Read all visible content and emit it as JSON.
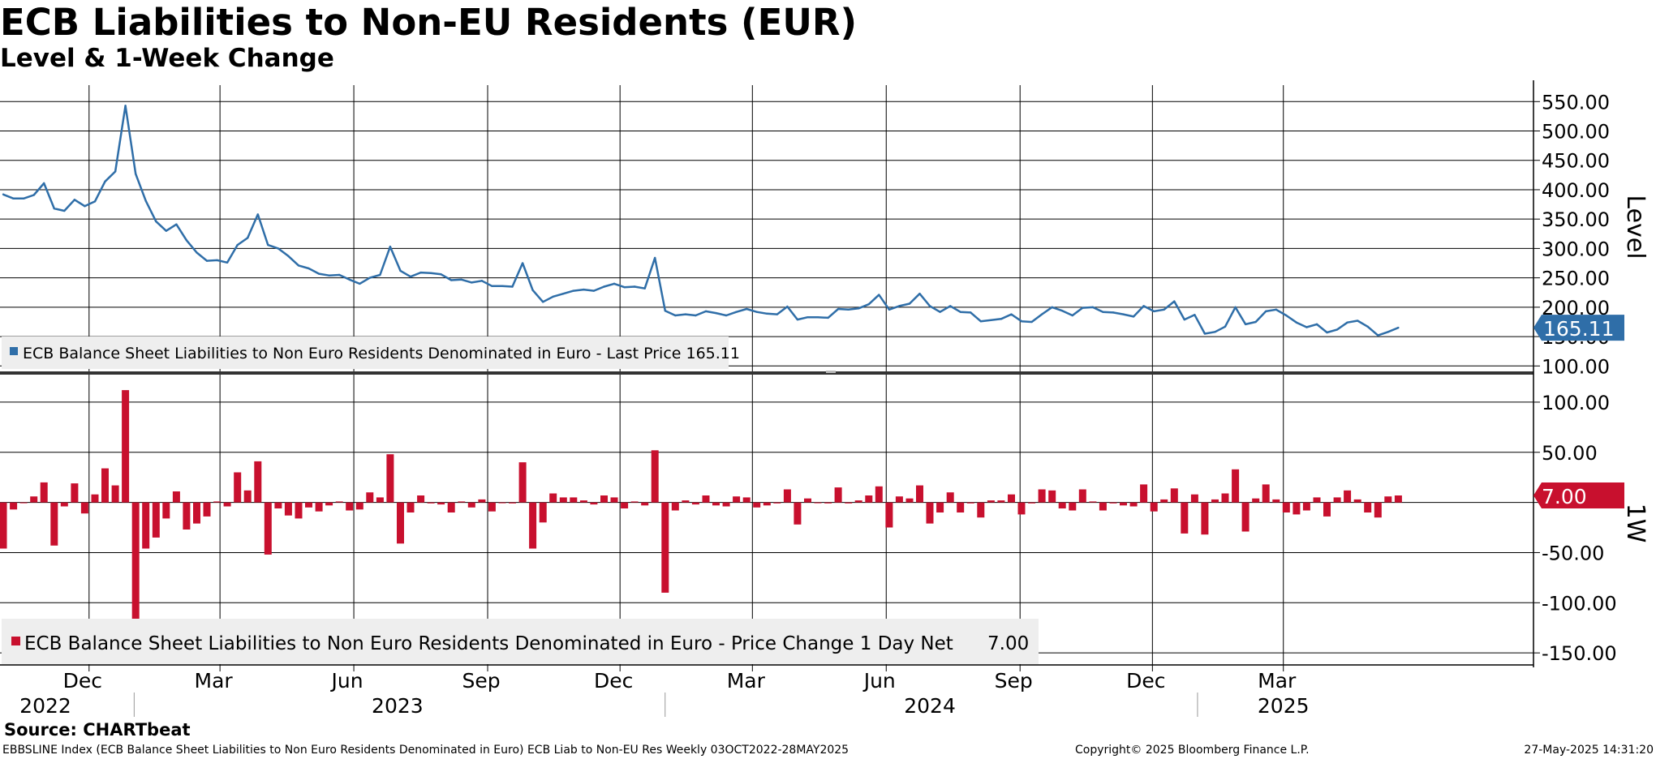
{
  "header": {
    "title": "ECB Liabilities to Non-EU Residents (EUR)",
    "subtitle": "Level & 1-Week Change"
  },
  "footer": {
    "source": "Source: CHARTbeat",
    "ticker_info": "EBBSLINE Index (ECB Balance Sheet Liabilities to Non Euro Residents Denominated in Euro) ECB Liab to Non-EU Res  Weekly 03OCT2022-28MAY2025",
    "copyright": "Copyright© 2025 Bloomberg Finance L.P.",
    "timestamp": "27-May-2025 14:31:20"
  },
  "colors": {
    "level_line": "#2f6ea8",
    "change_bar": "#c8102e",
    "grid": "#000000",
    "legend_bg": "#eeeeee"
  },
  "chart_data": [
    {
      "type": "line",
      "panel": "top",
      "ylabel": "Level",
      "ylim": [
        88,
        578
      ],
      "yticks": [
        100,
        150,
        200,
        250,
        300,
        350,
        400,
        450,
        500,
        550
      ],
      "ytick_labels": [
        "100.00",
        "150.00",
        "200.00",
        "250.00",
        "300.00",
        "350.00",
        "400.00",
        "450.00",
        "500.00",
        "550.00"
      ],
      "legend": "ECB Balance Sheet Liabilities to Non Euro Residents Denominated in Euro - Last Price 165.11",
      "last_value_label": "165.11",
      "series": [
        {
          "name": "ECB Balance Sheet Liabilities to Non Euro Residents Denominated in Euro",
          "x_start": "2022-10-03",
          "frequency": "weekly",
          "values": [
            392,
            385,
            385,
            391,
            411,
            368,
            364,
            383,
            372,
            380,
            414,
            431,
            543,
            427,
            381,
            346,
            330,
            341,
            314,
            293,
            279,
            280,
            276,
            306,
            318,
            358,
            306,
            300,
            287,
            271,
            266,
            257,
            254,
            255,
            247,
            240,
            250,
            255,
            303,
            262,
            252,
            259,
            258,
            256,
            246,
            247,
            242,
            245,
            236,
            236,
            235,
            275,
            229,
            209,
            218,
            223,
            228,
            230,
            228,
            235,
            240,
            234,
            235,
            232,
            284,
            194,
            186,
            188,
            186,
            193,
            190,
            186,
            192,
            197,
            192,
            189,
            188,
            201,
            179,
            183,
            183,
            182,
            197,
            196,
            198,
            205,
            221,
            196,
            202,
            206,
            223,
            202,
            192,
            202,
            192,
            191,
            176,
            178,
            180,
            188,
            176,
            175,
            188,
            200,
            194,
            186,
            199,
            200,
            192,
            191,
            188,
            184,
            202,
            193,
            196,
            210,
            179,
            187,
            155,
            158,
            167,
            200,
            171,
            175,
            193,
            196,
            186,
            174,
            166,
            171,
            157,
            162,
            174,
            177,
            167,
            152,
            158,
            165.11
          ]
        }
      ]
    },
    {
      "type": "bar",
      "panel": "bottom",
      "ylabel": "1W",
      "ylim": [
        -162,
        125
      ],
      "yticks": [
        -150,
        -100,
        -50,
        0,
        50,
        100
      ],
      "ytick_labels": [
        "-150.00",
        "-100.00",
        "-50.00",
        "",
        "50.00",
        "100.00"
      ],
      "legend_prefix": "ECB Balance Sheet Liabilities to Non Euro Residents Denominated in Euro - Price Change 1 Day Net",
      "legend_value": "7.00",
      "last_value_label": "7.00",
      "series": [
        {
          "name": "1-Week Change",
          "x_start": "2022-10-03",
          "frequency": "weekly",
          "values": [
            -46,
            -7,
            0,
            6,
            20,
            -43,
            -4,
            19,
            -11,
            8,
            34,
            17,
            112,
            -116,
            -46,
            -35,
            -16,
            11,
            -27,
            -21,
            -14,
            1,
            -4,
            30,
            12,
            41,
            -52,
            -6,
            -13,
            -16,
            -5,
            -9,
            -3,
            1,
            -8,
            -7,
            10,
            5,
            48,
            -41,
            -10,
            7,
            -1,
            -2,
            -10,
            1,
            -5,
            3,
            -9,
            0,
            -1,
            40,
            -46,
            -20,
            9,
            5,
            5,
            2,
            -2,
            7,
            5,
            -6,
            1,
            -3,
            52,
            -90,
            -8,
            2,
            -2,
            7,
            -3,
            -4,
            6,
            5,
            -5,
            -3,
            -1,
            13,
            -22,
            4,
            0,
            -1,
            15,
            -1,
            2,
            7,
            16,
            -25,
            6,
            4,
            17,
            -21,
            -10,
            10,
            -10,
            -1,
            -15,
            2,
            2,
            8,
            -12,
            -1,
            13,
            12,
            -6,
            -8,
            13,
            1,
            -8,
            -1,
            -3,
            -4,
            18,
            -9,
            3,
            14,
            -31,
            8,
            -32,
            3,
            9,
            33,
            -29,
            4,
            18,
            3,
            -10,
            -12,
            -8,
            5,
            -14,
            5,
            12,
            3,
            -10,
            -15,
            6,
            7
          ]
        }
      ]
    }
  ],
  "x_axis": {
    "months": [
      {
        "label": "Dec",
        "x": "2022-12-01"
      },
      {
        "label": "Mar",
        "x": "2023-03-01"
      },
      {
        "label": "Jun",
        "x": "2023-06-01"
      },
      {
        "label": "Sep",
        "x": "2023-09-01"
      },
      {
        "label": "Dec",
        "x": "2023-12-01"
      },
      {
        "label": "Mar",
        "x": "2024-03-01"
      },
      {
        "label": "Jun",
        "x": "2024-06-01"
      },
      {
        "label": "Sep",
        "x": "2024-09-01"
      },
      {
        "label": "Dec",
        "x": "2024-12-01"
      },
      {
        "label": "Mar",
        "x": "2025-03-01"
      }
    ],
    "years": [
      {
        "label": "2022",
        "x": "2022-11-01"
      },
      {
        "label": "2023",
        "x": "2023-07-01"
      },
      {
        "label": "2024",
        "x": "2024-07-01"
      },
      {
        "label": "2025",
        "x": "2025-03-01"
      }
    ],
    "year_separators": [
      "2023-01-01",
      "2024-01-01",
      "2025-01-01"
    ]
  }
}
